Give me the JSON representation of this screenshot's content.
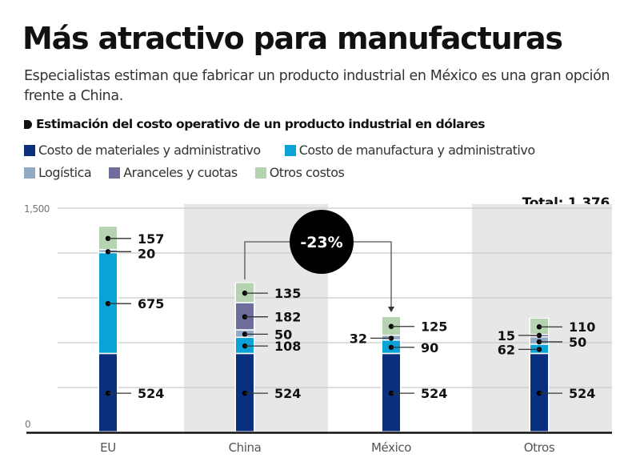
{
  "header": {
    "title": "Más atractivo para manufacturas",
    "subtitle": "Especialistas estiman que fabricar un producto industrial en México es una gran opción frente a China."
  },
  "chart_data": {
    "type": "bar",
    "stacked": true,
    "title": "Estimación del costo operativo de un producto industrial en dólares",
    "categories": [
      "EU",
      "China",
      "México",
      "Otros"
    ],
    "series": [
      {
        "name": "Costo de materiales y administrativo",
        "color": "#0b2f7f",
        "values": [
          524,
          524,
          524,
          524
        ]
      },
      {
        "name": "Costo de manufactura y administrativo",
        "color": "#0aa3d8",
        "values": [
          675,
          108,
          90,
          62
        ]
      },
      {
        "name": "Logística",
        "color": "#93aac6",
        "values": [
          20,
          50,
          32,
          50
        ]
      },
      {
        "name": "Aranceles y cuotas",
        "color": "#6e6d9b",
        "values": [
          0,
          182,
          0,
          15
        ]
      },
      {
        "name": "Otros costos",
        "color": "#b5d3b1",
        "values": [
          157,
          135,
          125,
          110
        ]
      }
    ],
    "labels": [
      [
        {
          "series": 0,
          "text": "524",
          "side": "right"
        },
        {
          "series": 1,
          "text": "675",
          "side": "right"
        },
        {
          "series": 2,
          "text": "20",
          "side": "right"
        },
        {
          "series": 4,
          "text": "157",
          "side": "right"
        }
      ],
      [
        {
          "series": 0,
          "text": "524",
          "side": "right"
        },
        {
          "series": 1,
          "text": "108",
          "side": "right"
        },
        {
          "series": 2,
          "text": "50",
          "side": "right"
        },
        {
          "series": 3,
          "text": "182",
          "side": "right"
        },
        {
          "series": 4,
          "text": "135",
          "side": "right"
        }
      ],
      [
        {
          "series": 0,
          "text": "524",
          "side": "right"
        },
        {
          "series": 1,
          "text": "90",
          "side": "right"
        },
        {
          "series": 2,
          "text": "32",
          "side": "left"
        },
        {
          "series": 4,
          "text": "125",
          "side": "right"
        }
      ],
      [
        {
          "series": 0,
          "text": "524",
          "side": "right"
        },
        {
          "series": 1,
          "text": "62",
          "side": "left"
        },
        {
          "series": 2,
          "text": "50",
          "side": "right"
        },
        {
          "series": 3,
          "text": "15",
          "side": "left"
        },
        {
          "series": 4,
          "text": "110",
          "side": "right"
        }
      ]
    ],
    "ylim": [
      0,
      1500
    ],
    "yticks": [
      0,
      300,
      600,
      900,
      1200,
      1500
    ],
    "ytick_labels": [
      "0",
      "",
      "",
      "",
      "",
      "1,500"
    ],
    "grid": true,
    "shaded_categories": [
      "China",
      "Otros"
    ],
    "annotation": {
      "text": "-23%",
      "from": "China",
      "to": "México"
    },
    "total_label": "Total: 1,376",
    "xlabel": "",
    "ylabel": ""
  }
}
